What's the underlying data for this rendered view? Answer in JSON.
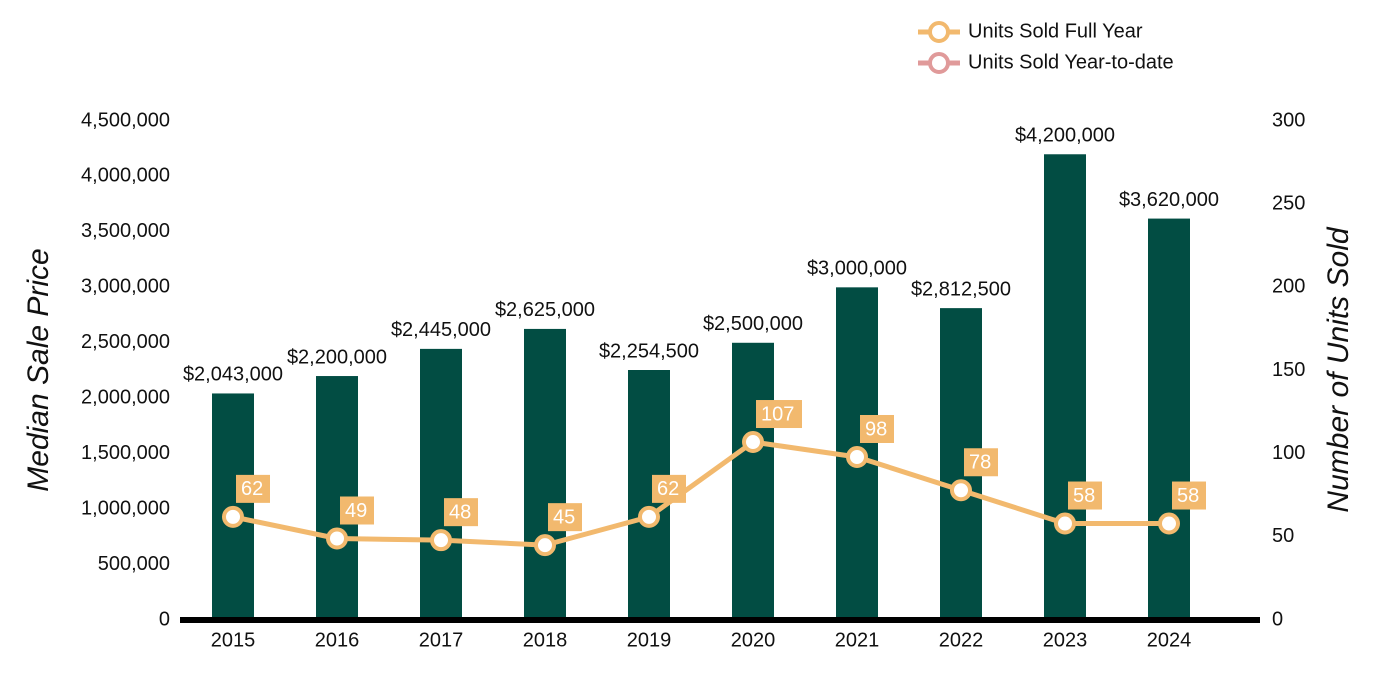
{
  "chart_data": {
    "type": "bar_line",
    "categories": [
      "2015",
      "2016",
      "2017",
      "2018",
      "2019",
      "2020",
      "2021",
      "2022",
      "2023",
      "2024"
    ],
    "y_label": "Median Sale Price",
    "y2_label": "Number of Units Sold",
    "series": [
      {
        "type": "bar",
        "color": "#024d43",
        "values": [
          2043000,
          2200000,
          2445000,
          2625000,
          2254500,
          2500000,
          3000000,
          2812500,
          4200000,
          3620000
        ],
        "value_labels": [
          "$2,043,000",
          "$2,200,000",
          "$2,445,000",
          "$2,625,000",
          "$2,254,500",
          "$2,500,000",
          "$3,000,000",
          "$2,812,500",
          "$4,200,000",
          "$3,620,000"
        ]
      },
      {
        "type": "line",
        "name": "Units Sold Full Year",
        "color": "#f2b96e",
        "axis": "y2",
        "values": [
          62,
          49,
          48,
          45,
          62,
          107,
          98,
          78,
          58,
          58
        ]
      },
      {
        "type": "line",
        "name": "Units Sold Year-to-date",
        "color": "#e09a9a",
        "axis": "y2",
        "values": [
          null,
          null,
          null,
          null,
          null,
          null,
          null,
          null,
          null,
          null
        ]
      }
    ],
    "ylim": [
      0,
      4500000
    ],
    "yticks": [
      0,
      {
        "value": 500000,
        "label": "500,000"
      },
      {
        "value": 1000000,
        "label": "1,000,000"
      },
      {
        "value": 1500000,
        "label": "1,500,000"
      },
      {
        "value": 2000000,
        "label": "2,000,000"
      },
      {
        "value": 2500000,
        "label": "2,500,000"
      },
      {
        "value": 3000000,
        "label": "3,000,000"
      },
      {
        "value": 3500000,
        "label": "3,500,000"
      },
      {
        "value": 4000000,
        "label": "4,000,000"
      },
      {
        "value": 4500000,
        "label": "4,500,000"
      }
    ],
    "y2lim": [
      0,
      300
    ],
    "y2ticks": [
      0,
      50,
      100,
      150,
      200,
      250,
      300
    ],
    "legend": "top-right"
  }
}
